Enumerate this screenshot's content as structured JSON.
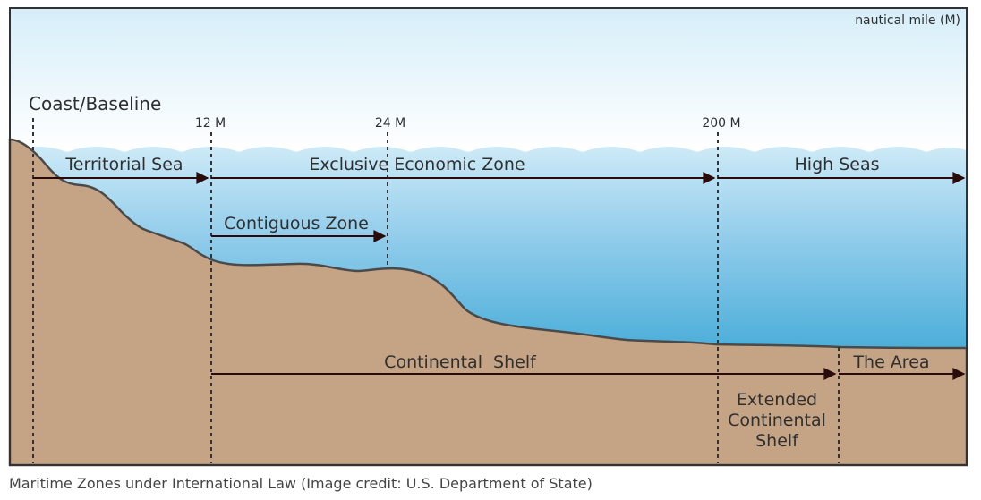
{
  "diagram": {
    "unit_label": "nautical mile (M)",
    "coast_label": "Coast/Baseline",
    "markers": [
      "12 M",
      "24 M",
      "200 M"
    ],
    "zones": {
      "territorial_sea": "Territorial Sea",
      "eez": "Exclusive Economic Zone",
      "high_seas": "High Seas",
      "contiguous_zone": "Contiguous Zone",
      "continental_shelf": "Continental  Shelf",
      "the_area": "The Area",
      "extended_shelf_line1": "Extended",
      "extended_shelf_line2": "Continental",
      "extended_shelf_line3": "Shelf"
    },
    "colors": {
      "sky_top": "#d6eef9",
      "water_top": "#c5e6f5",
      "water_bottom": "#4aaed8",
      "land": "#c4a484",
      "outline": "#3a3a3a",
      "arrow": "#2b0a0a"
    }
  },
  "caption": "Maritime Zones under International Law (Image credit: U.S. Department of State)"
}
